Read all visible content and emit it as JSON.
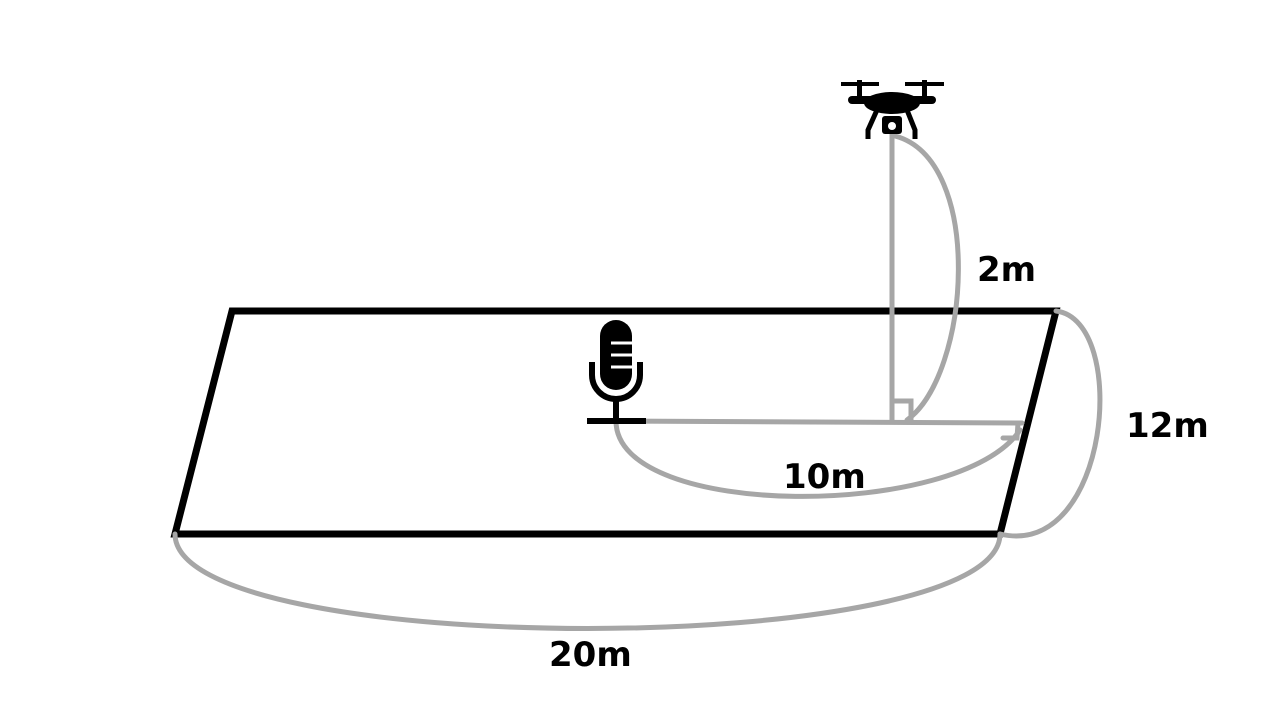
{
  "diagram": {
    "labels": {
      "drone_height": "2m",
      "field_depth": "12m",
      "mic_to_edge": "10m",
      "field_width": "20m"
    },
    "icons": {
      "drone": "drone-icon",
      "microphone": "microphone-icon"
    },
    "colors": {
      "outline": "#000000",
      "dimension_line": "#a6a6a6",
      "background": "#ffffff"
    }
  }
}
